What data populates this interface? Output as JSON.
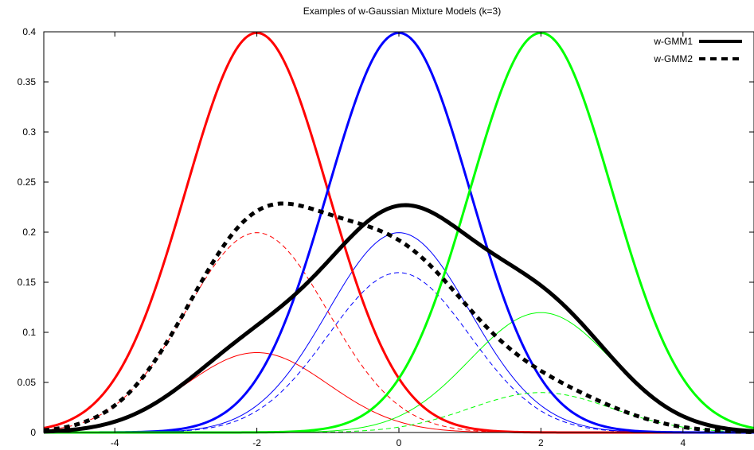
{
  "chart_data": {
    "type": "line",
    "title": "Examples of w-Gaussian Mixture Models (k=3)",
    "xlabel": "",
    "ylabel": "",
    "xlim": [
      -5,
      5
    ],
    "ylim": [
      0,
      0.4
    ],
    "x_ticks": [
      -4,
      -2,
      0,
      2,
      4
    ],
    "x_tick_labels": [
      "-4",
      "-2",
      "0",
      "2",
      "4"
    ],
    "y_ticks": [
      0,
      0.05,
      0.1,
      0.15,
      0.2,
      0.25,
      0.3,
      0.35,
      0.4
    ],
    "y_tick_labels": [
      "0",
      "0.05",
      "0.1",
      "0.15",
      "0.2",
      "0.25",
      "0.3",
      "0.35",
      "0.4"
    ],
    "grid": false,
    "legend_position": "top-right",
    "legend": [
      {
        "label": "w-GMM1",
        "style": "solid"
      },
      {
        "label": "w-GMM2",
        "style": "dashed"
      }
    ],
    "components": [
      {
        "mean": -2,
        "std": 1,
        "color": "#ff0000"
      },
      {
        "mean": 0,
        "std": 1,
        "color": "#0000ff"
      },
      {
        "mean": 2,
        "std": 1,
        "color": "#00ff00"
      }
    ],
    "mixtures": [
      {
        "name": "w-GMM1",
        "weights": [
          0.2,
          0.5,
          0.3
        ],
        "color": "#000000",
        "style": "solid"
      },
      {
        "name": "w-GMM2",
        "weights": [
          0.5,
          0.4,
          0.1
        ],
        "color": "#000000",
        "style": "dashed"
      }
    ]
  }
}
